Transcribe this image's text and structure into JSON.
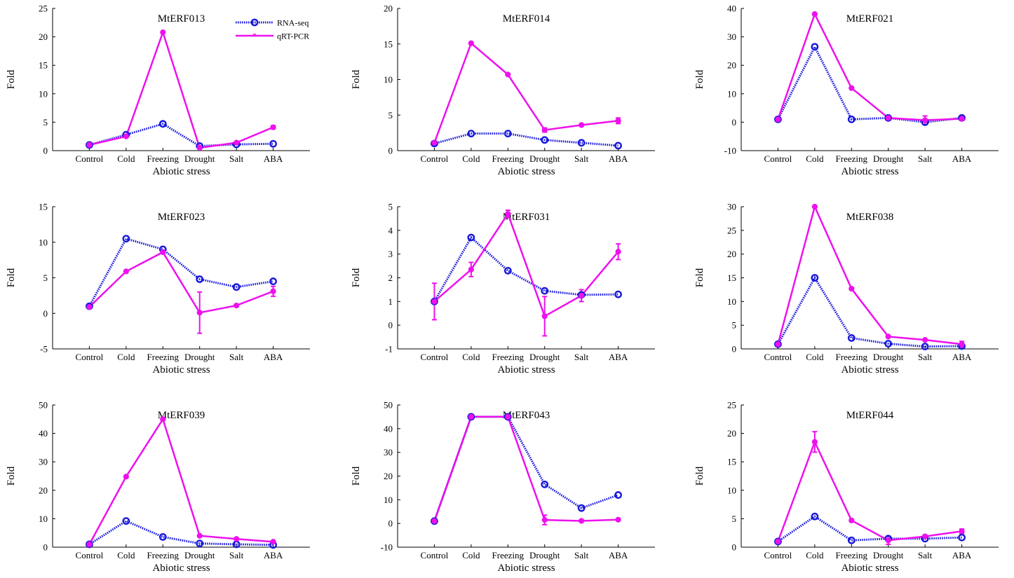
{
  "figure": {
    "legend": {
      "rna_label": "RNA-seq",
      "qrt_label": "qRT-PCR",
      "placement": "top-right of first panel"
    }
  },
  "colors": {
    "rna": "#1818dc",
    "qrt": "#ee11ee",
    "axis": "#000000"
  },
  "chart_data": [
    {
      "type": "line",
      "title": "MtERF013",
      "xlabel": "Abiotic stress",
      "ylabel": "Fold",
      "categories": [
        "Control",
        "Cold",
        "Freezing",
        "Drought",
        "Salt",
        "ABA"
      ],
      "ylim": [
        0,
        25
      ],
      "yticks": [
        0,
        5,
        10,
        15,
        20,
        25
      ],
      "series": [
        {
          "name": "RNA-seq",
          "values": [
            1.0,
            2.8,
            4.7,
            0.8,
            1.1,
            1.2
          ]
        },
        {
          "name": "qRT-PCR",
          "values": [
            1.0,
            2.5,
            20.8,
            0.5,
            1.4,
            4.1
          ],
          "errors": [
            0.1,
            0.1,
            0.1,
            0.1,
            0.1,
            0.3
          ]
        }
      ]
    },
    {
      "type": "line",
      "title": "MtERF014",
      "xlabel": "Abiotic stress",
      "ylabel": "Fold",
      "categories": [
        "Control",
        "Cold",
        "Freezing",
        "Drought",
        "Salt",
        "ABA"
      ],
      "ylim": [
        0,
        20
      ],
      "yticks": [
        0,
        5,
        10,
        15,
        20
      ],
      "series": [
        {
          "name": "RNA-seq",
          "values": [
            1.0,
            2.4,
            2.4,
            1.5,
            1.1,
            0.7
          ]
        },
        {
          "name": "qRT-PCR",
          "values": [
            1.1,
            15.1,
            10.7,
            2.9,
            3.6,
            4.2
          ],
          "errors": [
            0.1,
            0.1,
            0.1,
            0.3,
            0.1,
            0.4
          ]
        }
      ]
    },
    {
      "type": "line",
      "title": "MtERF021",
      "xlabel": "Abiotic stress",
      "ylabel": "Fold",
      "categories": [
        "Control",
        "Cold",
        "Freezing",
        "Drought",
        "Salt",
        "ABA"
      ],
      "ylim": [
        -10,
        40
      ],
      "yticks": [
        -10,
        0,
        10,
        20,
        30,
        40
      ],
      "series": [
        {
          "name": "RNA-seq",
          "values": [
            1.0,
            26.5,
            1.0,
            1.5,
            0.0,
            1.5
          ]
        },
        {
          "name": "qRT-PCR",
          "values": [
            1.0,
            38.0,
            12.0,
            1.5,
            0.7,
            1.2
          ],
          "errors": [
            0.2,
            0.3,
            0.3,
            0.4,
            1.5,
            0.5
          ]
        }
      ]
    },
    {
      "type": "line",
      "title": "MtERF023",
      "xlabel": "Abiotic stress",
      "ylabel": "Fold",
      "categories": [
        "Control",
        "Cold",
        "Freezing",
        "Drought",
        "Salt",
        "ABA"
      ],
      "ylim": [
        -5,
        15
      ],
      "yticks": [
        -5,
        0,
        5,
        10,
        15
      ],
      "series": [
        {
          "name": "RNA-seq",
          "values": [
            1.0,
            10.5,
            9.0,
            4.8,
            3.7,
            4.5
          ]
        },
        {
          "name": "qRT-PCR",
          "values": [
            0.9,
            5.9,
            8.6,
            0.1,
            1.1,
            3.1
          ],
          "errors": [
            0.2,
            0.1,
            0.2,
            2.9,
            0.1,
            0.7
          ]
        }
      ]
    },
    {
      "type": "line",
      "title": "MtERF031",
      "xlabel": "Abiotic stress",
      "ylabel": "Fold",
      "categories": [
        "Control",
        "Cold",
        "Freezing",
        "Drought",
        "Salt",
        "ABA"
      ],
      "ylim": [
        -1,
        5
      ],
      "yticks": [
        -1,
        0,
        1,
        2,
        3,
        4,
        5
      ],
      "series": [
        {
          "name": "RNA-seq",
          "values": [
            1.0,
            3.7,
            2.3,
            1.45,
            1.28,
            1.3
          ]
        },
        {
          "name": "qRT-PCR",
          "values": [
            1.0,
            2.35,
            4.7,
            0.38,
            1.25,
            3.1
          ],
          "errors": [
            0.77,
            0.3,
            0.15,
            0.83,
            0.25,
            0.33
          ]
        }
      ]
    },
    {
      "type": "line",
      "title": "MtERF038",
      "xlabel": "Abiotic stress",
      "ylabel": "Fold",
      "categories": [
        "Control",
        "Cold",
        "Freezing",
        "Drought",
        "Salt",
        "ABA"
      ],
      "ylim": [
        0,
        30
      ],
      "yticks": [
        0,
        5,
        10,
        15,
        20,
        25,
        30
      ],
      "series": [
        {
          "name": "RNA-seq",
          "values": [
            1.0,
            15.0,
            2.3,
            1.1,
            0.5,
            0.6
          ]
        },
        {
          "name": "qRT-PCR",
          "values": [
            1.0,
            30.0,
            12.7,
            2.6,
            1.9,
            1.0
          ],
          "errors": [
            0.1,
            0.1,
            0.1,
            0.1,
            0.1,
            0.6
          ]
        }
      ]
    },
    {
      "type": "line",
      "title": "MtERF039",
      "xlabel": "Abiotic stress",
      "ylabel": "Fold",
      "categories": [
        "Control",
        "Cold",
        "Freezing",
        "Drought",
        "Salt",
        "ABA"
      ],
      "ylim": [
        0,
        50
      ],
      "yticks": [
        0,
        10,
        20,
        30,
        40,
        50
      ],
      "series": [
        {
          "name": "RNA-seq",
          "values": [
            1.0,
            9.2,
            3.6,
            1.3,
            1.0,
            0.8
          ]
        },
        {
          "name": "qRT-PCR",
          "values": [
            1.0,
            24.8,
            45.0,
            4.0,
            2.9,
            1.9
          ],
          "errors": [
            0.1,
            0.2,
            0.2,
            0.2,
            0.2,
            0.2
          ]
        }
      ]
    },
    {
      "type": "line",
      "title": "MtERF043",
      "xlabel": "Abiotic stress",
      "ylabel": "Fold",
      "categories": [
        "Control",
        "Cold",
        "Freezing",
        "Drought",
        "Salt",
        "ABA"
      ],
      "ylim": [
        -10,
        50
      ],
      "yticks": [
        -10,
        0,
        10,
        20,
        30,
        40,
        50
      ],
      "series": [
        {
          "name": "RNA-seq",
          "values": [
            1.0,
            45.0,
            45.0,
            16.5,
            6.5,
            12.0
          ]
        },
        {
          "name": "qRT-PCR",
          "values": [
            1.0,
            45.0,
            45.0,
            1.5,
            1.1,
            1.6
          ],
          "errors": [
            0.1,
            0.1,
            0.1,
            2.0,
            0.2,
            0.2
          ]
        }
      ]
    },
    {
      "type": "line",
      "title": "MtERF044",
      "xlabel": "Abiotic stress",
      "ylabel": "Fold",
      "categories": [
        "Control",
        "Cold",
        "Freezing",
        "Drought",
        "Salt",
        "ABA"
      ],
      "ylim": [
        0,
        25
      ],
      "yticks": [
        0,
        5,
        10,
        15,
        20,
        25
      ],
      "series": [
        {
          "name": "RNA-seq",
          "values": [
            1.0,
            5.4,
            1.2,
            1.5,
            1.5,
            1.7
          ]
        },
        {
          "name": "qRT-PCR",
          "values": [
            1.0,
            18.5,
            4.7,
            1.2,
            1.9,
            2.8
          ],
          "errors": [
            0.1,
            1.8,
            0.2,
            0.7,
            0.2,
            0.4
          ]
        }
      ]
    }
  ]
}
